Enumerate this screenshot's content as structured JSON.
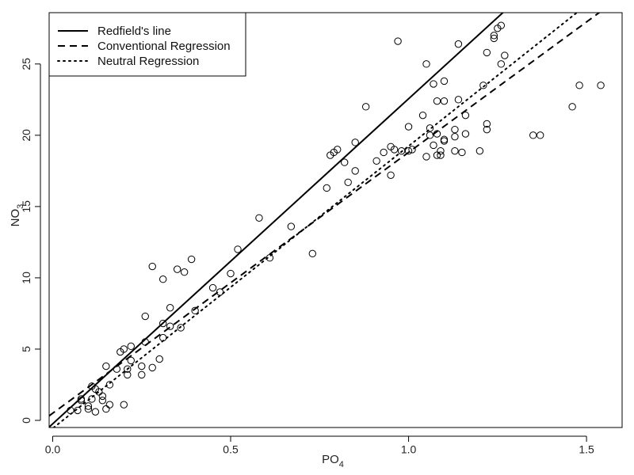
{
  "chart_data": {
    "type": "scatter",
    "xlabel": "PO",
    "xlabel_sub": "4",
    "ylabel": "NO",
    "ylabel_sub": "3",
    "xlim": [
      -0.01,
      1.6
    ],
    "ylim": [
      -0.5,
      28.6
    ],
    "xticks": [
      0.0,
      0.5,
      1.0,
      1.5
    ],
    "xtick_labels": [
      "0.0",
      "0.5",
      "1.0",
      "1.5"
    ],
    "yticks": [
      0,
      5,
      10,
      15,
      20,
      25
    ],
    "ytick_labels": [
      "0",
      "5",
      "10",
      "15",
      "20",
      "25"
    ],
    "grid": false,
    "legend": {
      "position": "top-left",
      "entries": [
        {
          "label": "Redfield's line",
          "style": "solid"
        },
        {
          "label": "Conventional Regression",
          "style": "dashed"
        },
        {
          "label": "Neutral Regression",
          "style": "dotted"
        }
      ]
    },
    "lines": [
      {
        "name": "Redfield's line",
        "style": "solid",
        "intercept": -0.24,
        "slope": 22.8
      },
      {
        "name": "Conventional Regression",
        "style": "dashed",
        "intercept": 0.5,
        "slope": 18.3
      },
      {
        "name": "Neutral Regression",
        "style": "dotted",
        "intercept": -0.56,
        "slope": 19.8
      }
    ],
    "points": {
      "x": [
        0.05,
        0.07,
        0.08,
        0.08,
        0.1,
        0.1,
        0.11,
        0.11,
        0.12,
        0.12,
        0.13,
        0.14,
        0.14,
        0.15,
        0.15,
        0.16,
        0.16,
        0.18,
        0.19,
        0.2,
        0.2,
        0.21,
        0.21,
        0.22,
        0.22,
        0.25,
        0.25,
        0.26,
        0.26,
        0.28,
        0.28,
        0.3,
        0.31,
        0.31,
        0.31,
        0.33,
        0.33,
        0.35,
        0.36,
        0.37,
        0.39,
        0.4,
        0.45,
        0.47,
        0.5,
        0.52,
        0.58,
        0.61,
        0.67,
        0.73,
        0.77,
        0.78,
        0.79,
        0.8,
        0.82,
        0.83,
        0.85,
        0.85,
        0.88,
        0.91,
        0.93,
        0.95,
        0.95,
        0.96,
        0.97,
        0.98,
        1.0,
        1.0,
        1.01,
        1.04,
        1.05,
        1.05,
        1.06,
        1.06,
        1.07,
        1.07,
        1.08,
        1.08,
        1.08,
        1.09,
        1.09,
        1.1,
        1.1,
        1.1,
        1.1,
        1.13,
        1.13,
        1.13,
        1.14,
        1.14,
        1.15,
        1.16,
        1.16,
        1.2,
        1.21,
        1.22,
        1.22,
        1.22,
        1.24,
        1.24,
        1.25,
        1.26,
        1.26,
        1.27,
        1.35,
        1.37,
        1.46,
        1.48,
        1.54
      ],
      "y": [
        0.7,
        0.7,
        1.5,
        1.4,
        0.8,
        1.0,
        1.5,
        2.4,
        2.2,
        0.6,
        2.0,
        1.7,
        1.4,
        0.8,
        3.8,
        1.1,
        2.5,
        3.6,
        4.8,
        5.0,
        1.1,
        3.6,
        3.2,
        4.2,
        5.2,
        3.8,
        3.2,
        5.5,
        7.3,
        10.8,
        3.7,
        4.3,
        6.8,
        5.8,
        9.9,
        6.6,
        7.9,
        10.6,
        6.5,
        10.4,
        11.3,
        7.7,
        9.3,
        9.0,
        10.3,
        12.0,
        14.2,
        11.4,
        13.6,
        11.7,
        16.3,
        18.6,
        18.8,
        19.0,
        18.1,
        16.7,
        17.5,
        19.5,
        22.0,
        18.2,
        18.8,
        19.2,
        17.2,
        19.0,
        26.6,
        18.9,
        18.9,
        20.6,
        19.0,
        21.4,
        18.5,
        25.0,
        20.0,
        20.5,
        19.3,
        23.6,
        22.4,
        20.1,
        18.6,
        18.9,
        18.6,
        19.6,
        19.7,
        22.4,
        23.8,
        18.9,
        19.9,
        20.4,
        22.5,
        26.4,
        18.8,
        20.1,
        21.4,
        18.9,
        23.5,
        20.4,
        20.8,
        25.8,
        26.8,
        27.0,
        27.5,
        27.7,
        25.0,
        25.6,
        20.0,
        20.0,
        22.0,
        23.5,
        23.5
      ]
    }
  }
}
